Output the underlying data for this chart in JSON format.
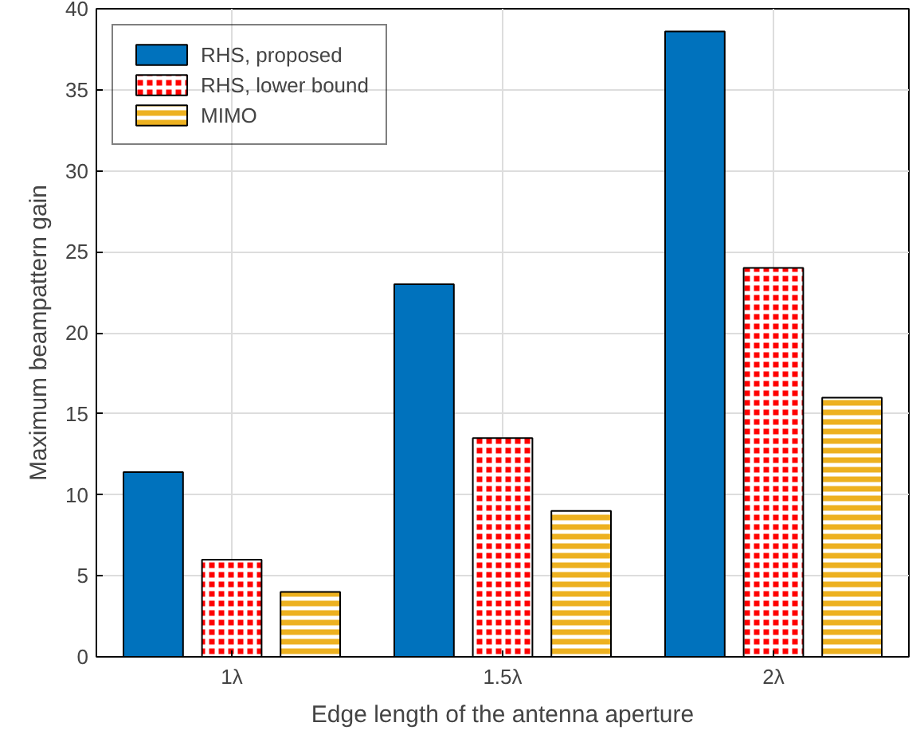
{
  "chart_data": {
    "type": "bar",
    "xlabel": "Edge length of the antenna aperture",
    "ylabel": "Maximum beampattern gain",
    "categories": [
      "1λ",
      "1.5λ",
      "2λ"
    ],
    "series": [
      {
        "name": "RHS, proposed",
        "color": "#0072bd",
        "values": [
          11.4,
          23,
          38.6
        ]
      },
      {
        "name": "RHS, lower bound",
        "color": "#ff0000",
        "values": [
          6,
          13.5,
          24
        ]
      },
      {
        "name": "MIMO",
        "color": "#edb120",
        "values": [
          4,
          9,
          16
        ]
      }
    ],
    "ylim": [
      0,
      40
    ],
    "yticks": [
      0,
      5,
      10,
      15,
      20,
      25,
      30,
      35,
      40
    ],
    "grid": true,
    "legend": "top left"
  }
}
